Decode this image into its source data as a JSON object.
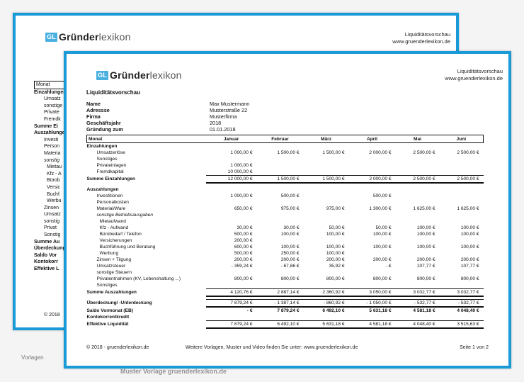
{
  "brand": {
    "mark": "GL",
    "part1": "Gründer",
    "part2": "lexikon"
  },
  "header_right": {
    "line1": "Liquiditätsvorschau",
    "line2": "www.gruenderlexikon.de"
  },
  "back_page": {
    "labels": [
      "Monat",
      "Einzahlungen",
      "Umsatz",
      "sonstige",
      "Private",
      "Fremdk",
      "Summe Ei",
      "",
      "Auszahlungen",
      "Investi",
      "Person",
      "Materia",
      "sonstig",
      "Mietau",
      "Kfz - A",
      "Bürob",
      "Versic",
      "Buchf",
      "Werbu",
      "Zinsen",
      "Umsatz",
      "sonstig",
      "Privat",
      "Sonstig",
      "Summe Au",
      "",
      "Überdeckung",
      "Saldo Vor",
      "Kontokorr",
      "Effektive L"
    ],
    "footer": "© 2018"
  },
  "title": "Liquiditätsvorschau",
  "info": [
    {
      "k": "Name",
      "v": "Max Mustermann"
    },
    {
      "k": "Adressse",
      "v": "Musterstraße 22"
    },
    {
      "k": "Firma",
      "v": "Musterfirma"
    },
    {
      "k": "Geschäftsjahr",
      "v": "2018"
    },
    {
      "k": "Gründung zum",
      "v": "01.01.2018"
    }
  ],
  "table": {
    "header": [
      "Monat",
      "Januar",
      "Februar",
      "März",
      "April",
      "Mai",
      "Juni"
    ],
    "rows": [
      {
        "type": "sec",
        "label": "Einzahlungen",
        "vals": [
          "",
          "",
          "",
          "",
          "",
          ""
        ]
      },
      {
        "type": "i1",
        "label": "Umsatzerlöse",
        "vals": [
          "1 000,00 €",
          "1 500,00 €",
          "1 500,00 €",
          "2 000,00 €",
          "2 500,00 €",
          "2 500,00 €"
        ]
      },
      {
        "type": "i1",
        "label": "Sonstiges",
        "vals": [
          "",
          "",
          "",
          "",
          "",
          ""
        ]
      },
      {
        "type": "i1",
        "label": "Privateinlagen",
        "vals": [
          "1 000,00 €",
          "",
          "",
          "",
          "",
          ""
        ]
      },
      {
        "type": "i1",
        "label": "Fremdkapital",
        "vals": [
          "10 000,00 €",
          "",
          "",
          "",
          "",
          ""
        ]
      },
      {
        "type": "sum",
        "label": "Summe Einzahlungen",
        "vals": [
          "12 000,00 €",
          "1 500,00 €",
          "1 500,00 €",
          "2 000,00 €",
          "2 500,00 €",
          "2 500,00 €"
        ]
      },
      {
        "type": "gap",
        "label": "",
        "vals": [
          "",
          "",
          "",
          "",
          "",
          ""
        ]
      },
      {
        "type": "sec",
        "label": "Auszahlungen",
        "vals": [
          "",
          "",
          "",
          "",
          "",
          ""
        ]
      },
      {
        "type": "i1",
        "label": "Investitionen",
        "vals": [
          "1 000,00 €",
          "500,00 €",
          "",
          "500,00 €",
          "",
          ""
        ]
      },
      {
        "type": "i1",
        "label": "Personalkosten",
        "vals": [
          "",
          "",
          "",
          "",
          "",
          ""
        ]
      },
      {
        "type": "i1",
        "label": "Material/Ware",
        "vals": [
          "650,00 €",
          "975,00 €",
          "975,00 €",
          "1 300,00 €",
          "1 625,00 €",
          "1 625,00 €"
        ]
      },
      {
        "type": "it",
        "label": "sonstige Betriebsausgaben",
        "vals": [
          "",
          "",
          "",
          "",
          "",
          ""
        ]
      },
      {
        "type": "i2",
        "label": "Mietaufwand",
        "vals": [
          "",
          "",
          "",
          "",
          "",
          ""
        ]
      },
      {
        "type": "i2",
        "label": "Kfz - Aufwand",
        "vals": [
          "30,00 €",
          "30,00 €",
          "50,00 €",
          "50,00 €",
          "100,00 €",
          "100,00 €"
        ]
      },
      {
        "type": "i2",
        "label": "Bürobedarf / Telefon",
        "vals": [
          "500,00 €",
          "100,00 €",
          "100,00 €",
          "100,00 €",
          "100,00 €",
          "100,00 €"
        ]
      },
      {
        "type": "i2",
        "label": "Versicherungen",
        "vals": [
          "200,00 €",
          "",
          "",
          "",
          "",
          ""
        ]
      },
      {
        "type": "i2",
        "label": "Buchführung und Beratung",
        "vals": [
          "600,00 €",
          "100,00 €",
          "100,00 €",
          "100,00 €",
          "100,00 €",
          "100,00 €"
        ]
      },
      {
        "type": "i2",
        "label": "Werbung",
        "vals": [
          "500,00 €",
          "250,00 €",
          "100,00 €",
          "",
          "",
          ""
        ]
      },
      {
        "type": "i1",
        "label": "Zinsen + Tilgung",
        "vals": [
          "200,00 €",
          "200,00 €",
          "200,00 €",
          "200,00 €",
          "200,00 €",
          "200,00 €"
        ]
      },
      {
        "type": "i1",
        "label": "Umsatzsteuer",
        "vals": [
          "-      359,24 €",
          "-        67,86 €",
          "35,92 €",
          "-        €",
          "107,77 €",
          "107,77 €"
        ]
      },
      {
        "type": "i1",
        "label": "sonstige Steuern",
        "vals": [
          "",
          "",
          "",
          "",
          "",
          ""
        ]
      },
      {
        "type": "i1",
        "label": "Privatentnahmen (KV, Lebenshaltung ...)",
        "vals": [
          "800,00 €",
          "800,00 €",
          "800,00 €",
          "800,00 €",
          "800,00 €",
          "800,00 €"
        ]
      },
      {
        "type": "i1",
        "label": "Sonstiges",
        "vals": [
          "",
          "",
          "",
          "",
          "",
          ""
        ]
      },
      {
        "type": "sum",
        "label": "Summe Auszahlungen",
        "vals": [
          "4 120,76 €",
          "2 887,14 €",
          "2 360,92 €",
          "3 050,00 €",
          "3 032,77 €",
          "3 032,77 €"
        ]
      },
      {
        "type": "gap",
        "label": "",
        "vals": [
          "",
          "",
          "",
          "",
          "",
          ""
        ]
      },
      {
        "type": "dbl",
        "label": "Überdeckung/ -Unterdeckung",
        "vals": [
          "7 879,24 €",
          "-    1 387,14 €",
          "-      860,92 €",
          "-    1 050,00 €",
          "-      532,77 €",
          "-      532,77 €"
        ]
      },
      {
        "type": "bt",
        "label": "Saldo Vormonat (EB)",
        "vals": [
          "-        €",
          "7 879,24 €",
          "6 492,10 €",
          "5 631,18 €",
          "4 581,18 €",
          "4 048,40 €"
        ]
      },
      {
        "type": "bt",
        "label": "Kontokorrentkredit",
        "vals": [
          "",
          "",
          "",
          "",
          "",
          ""
        ]
      },
      {
        "type": "dbl",
        "label": "Effektive Liquidität",
        "vals": [
          "7 879,24 €",
          "6 492,10 €",
          "5 631,18 €",
          "4 581,18 €",
          "4 048,40 €",
          "3 515,63 €"
        ]
      }
    ]
  },
  "footer": {
    "left": "© 2018 - gruenderlexikon.de",
    "mid": "Weitere Vorlagen, Muster und Video finden Sie unter: www.gruenderlexikon.de",
    "right": "Seite 1 von 2"
  },
  "background_text": {
    "vorlagen": "Vorlagen",
    "below": "Muster Vorlage gruenderlexikon.de"
  }
}
